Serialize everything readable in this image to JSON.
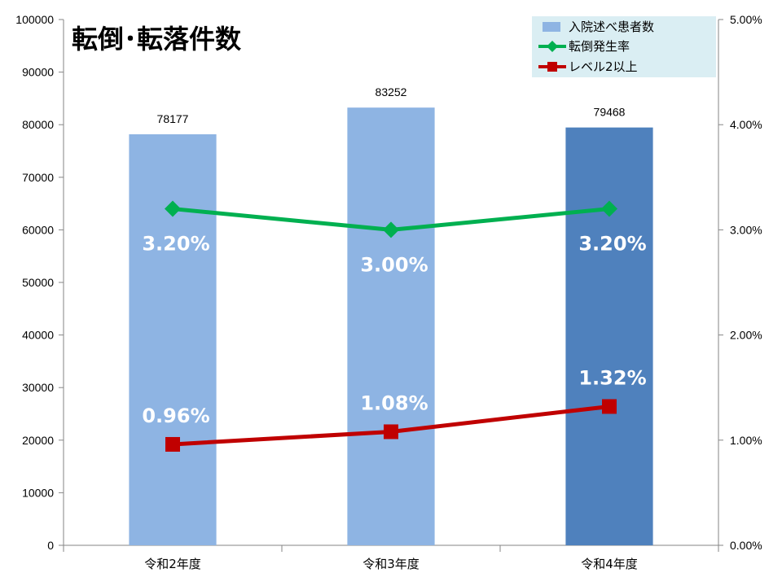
{
  "chart_data": {
    "type": "bar",
    "title": "転倒･転落件数",
    "categories": [
      "令和2年度",
      "令和3年度",
      "令和4年度"
    ],
    "series": [
      {
        "name": "入院述べ患者数",
        "type": "bar",
        "axis": "left",
        "values": [
          78177,
          83252,
          79468
        ],
        "color": "#8EB4E3",
        "highlight_color": "#4F81BD",
        "highlight_index": 2
      },
      {
        "name": "転倒発生率",
        "type": "line",
        "axis": "right",
        "values": [
          3.2,
          3.0,
          3.2
        ],
        "labels": [
          "3.20%",
          "3.00%",
          "3.20%"
        ],
        "color": "#00B050",
        "marker": "diamond"
      },
      {
        "name": "レベル2以上",
        "type": "line",
        "axis": "right",
        "values": [
          0.96,
          1.08,
          1.32
        ],
        "labels": [
          "0.96%",
          "1.08%",
          "1.32%"
        ],
        "color": "#C00000",
        "marker": "square"
      }
    ],
    "bar_labels": [
      "78177",
      "83252",
      "79468"
    ],
    "y_left": {
      "min": 0,
      "max": 100000,
      "step": 10000,
      "ticks": [
        "0",
        "10000",
        "20000",
        "30000",
        "40000",
        "50000",
        "60000",
        "70000",
        "80000",
        "90000",
        "100000"
      ]
    },
    "y_right": {
      "min": 0,
      "max": 5,
      "step": 1,
      "ticks": [
        "0.00%",
        "1.00%",
        "2.00%",
        "3.00%",
        "4.00%",
        "5.00%"
      ]
    },
    "legend_position": "top-right",
    "grid": false
  }
}
